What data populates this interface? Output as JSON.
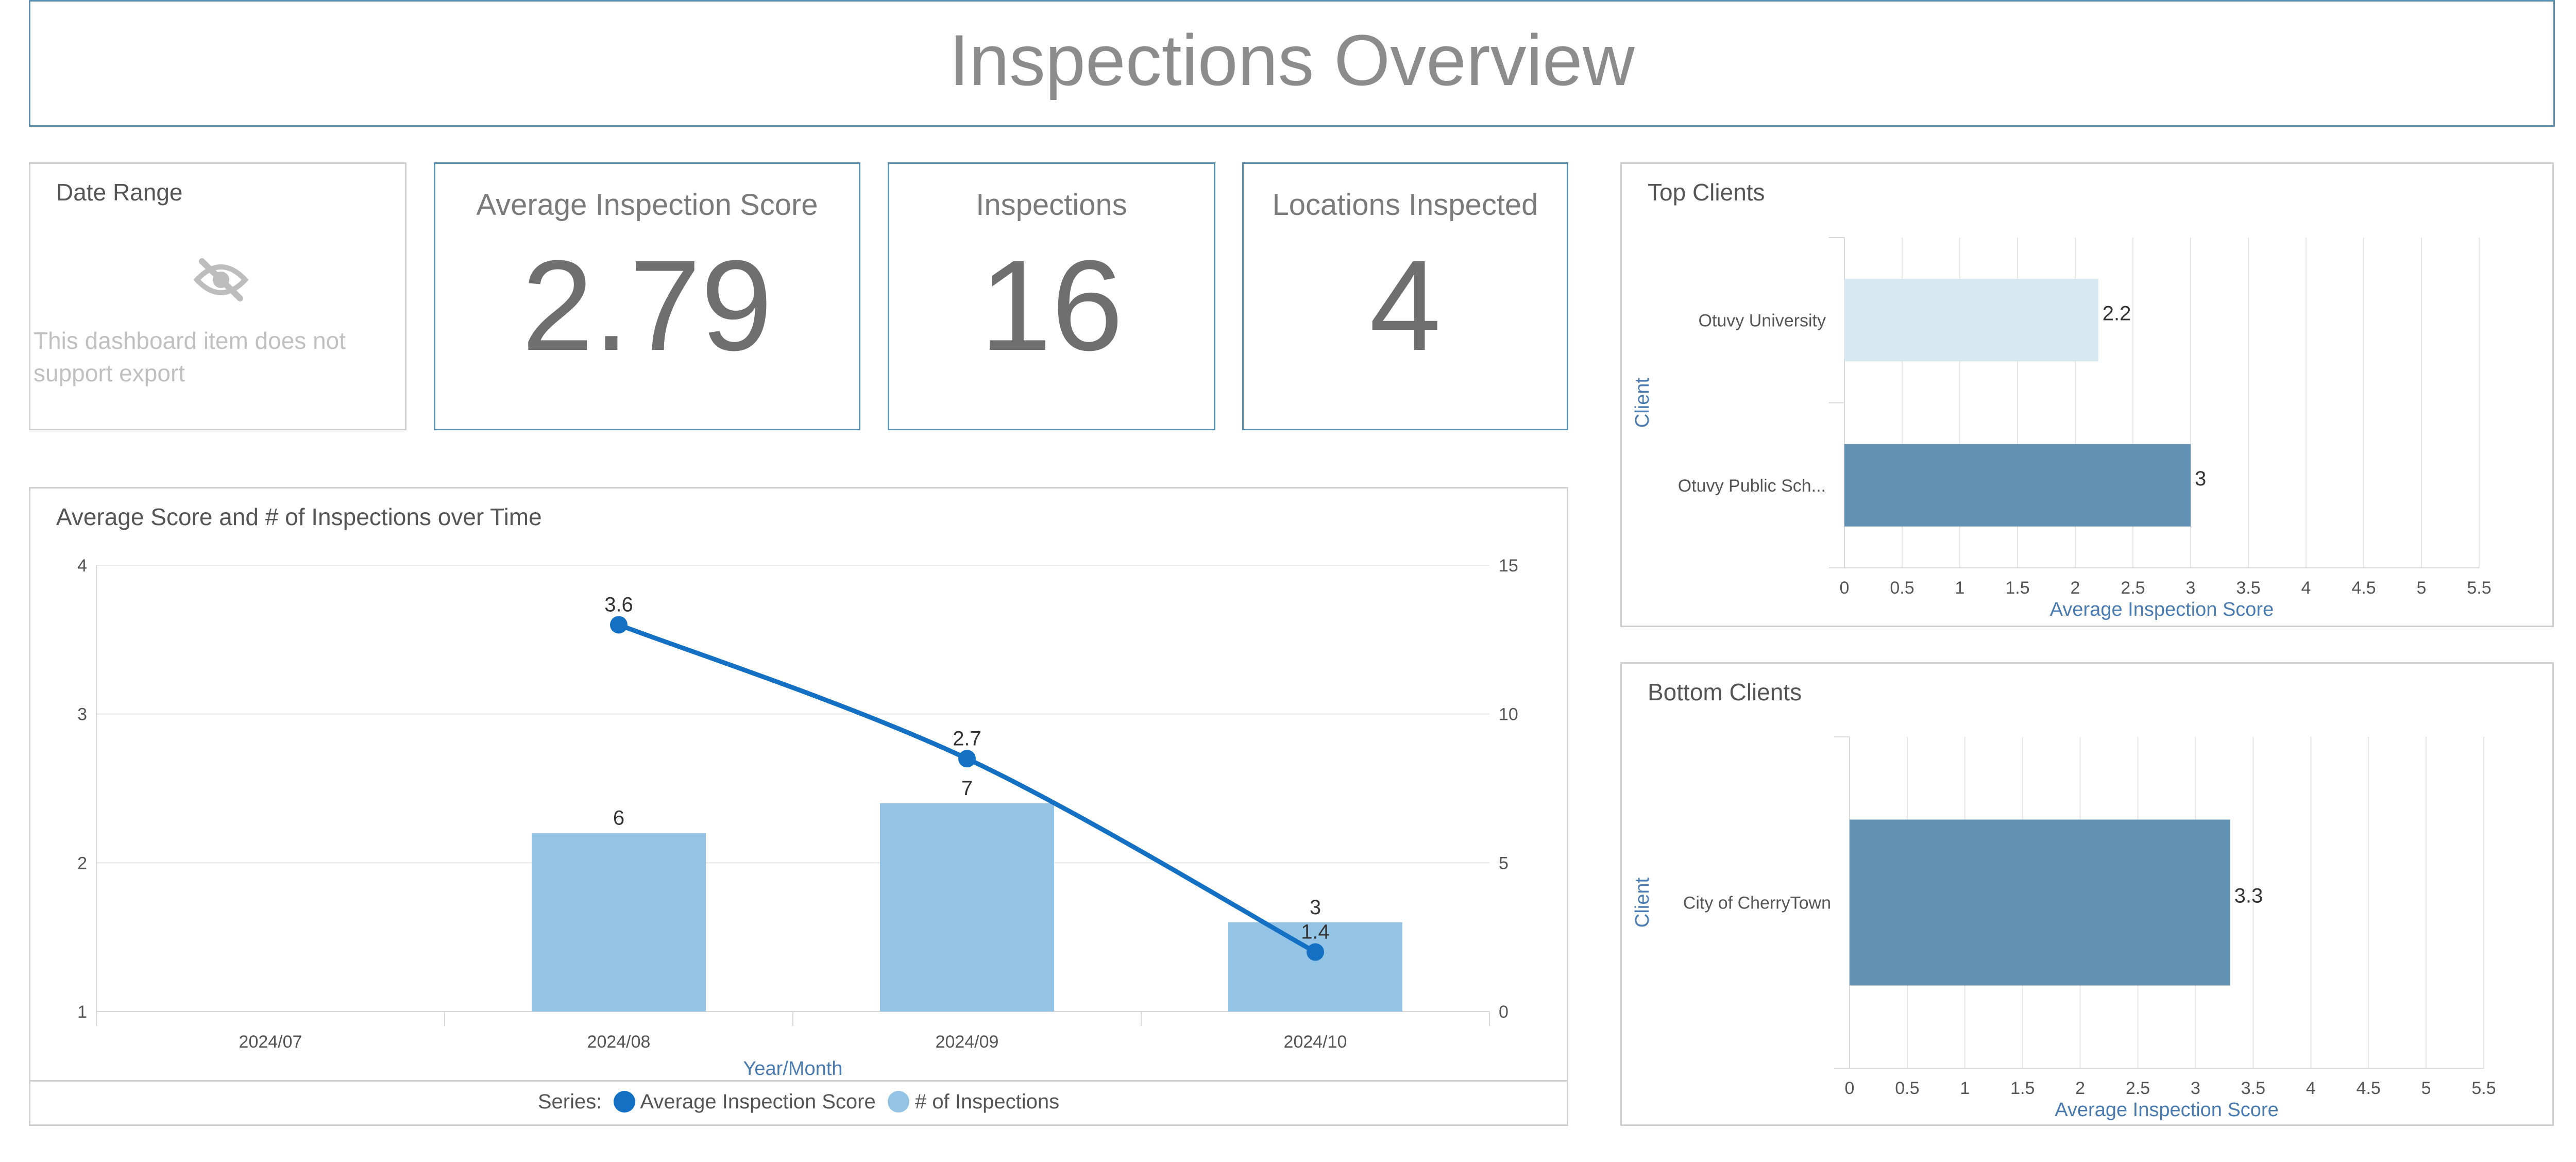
{
  "header": {
    "title": "Inspections Overview"
  },
  "date_range": {
    "title": "Date Range",
    "message": "This dashboard item does not support export",
    "icon": "eye-slash-icon"
  },
  "kpis": [
    {
      "title": "Average Inspection Score",
      "value": "2.79"
    },
    {
      "title": "Inspections",
      "value": "16"
    },
    {
      "title": "Locations Inspected",
      "value": "4"
    }
  ],
  "colors": {
    "line": "#1470c2",
    "bar_light": "#93c3e5",
    "client_bar_dark": "#6192b4",
    "client_bar_light": "#d7e8f0",
    "axis_title": "#4a7bb0",
    "panel_border": "#5a8fb4"
  },
  "chart_data": [
    {
      "title": "Average Score and # of Inspections over Time",
      "type": "bar+line",
      "categories": [
        "2024/07",
        "2024/08",
        "2024/09",
        "2024/10"
      ],
      "xlabel": "Year/Month",
      "ylim_left": [
        1,
        4
      ],
      "yticks_left": [
        "1",
        "2",
        "3",
        "4"
      ],
      "ylim_right": [
        0,
        15
      ],
      "yticks_right": [
        "0",
        "5",
        "10",
        "15"
      ],
      "series": [
        {
          "name": "Average Inspection Score",
          "type": "line",
          "axis": "left",
          "values": [
            null,
            3.6,
            2.7,
            1.4
          ]
        },
        {
          "name": "# of Inspections",
          "type": "bar",
          "axis": "right",
          "values": [
            null,
            6,
            7,
            3
          ]
        }
      ],
      "legend": {
        "prefix": "Series:",
        "placement": "bottom"
      }
    },
    {
      "title": "Top Clients",
      "type": "bar",
      "orientation": "horizontal",
      "ylabel": "Client",
      "xlabel": "Average Inspection Score",
      "categories": [
        "Otuvy University",
        "Otuvy Public Sch..."
      ],
      "values": [
        2.2,
        3
      ],
      "xlim": [
        0,
        5.5
      ],
      "xticks": [
        "0",
        "0.5",
        "1",
        "1.5",
        "2",
        "2.5",
        "3",
        "3.5",
        "4",
        "4.5",
        "5",
        "5.5"
      ]
    },
    {
      "title": "Bottom Clients",
      "type": "bar",
      "orientation": "horizontal",
      "ylabel": "Client",
      "xlabel": "Average Inspection Score",
      "categories": [
        "City of CherryTown"
      ],
      "values": [
        3.3
      ],
      "xlim": [
        0,
        5.5
      ],
      "xticks": [
        "0",
        "0.5",
        "1",
        "1.5",
        "2",
        "2.5",
        "3",
        "3.5",
        "4",
        "4.5",
        "5",
        "5.5"
      ]
    }
  ]
}
